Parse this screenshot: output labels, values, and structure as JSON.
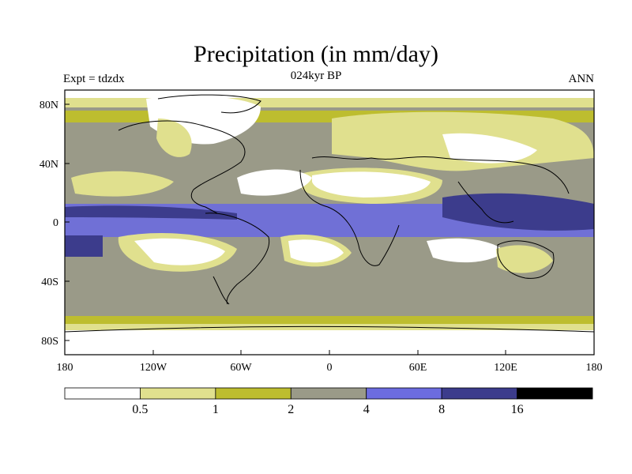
{
  "title": "Precipitation (in mm/day)",
  "experiment_label": "Expt = tdzdx",
  "period_label": "024kyr BP",
  "season_label": "ANN",
  "lat_ticks": [
    "80N",
    "40N",
    "0",
    "40S",
    "80S"
  ],
  "lon_ticks": [
    "180",
    "120W",
    "60W",
    "0",
    "60E",
    "120E",
    "180"
  ],
  "colorbar": {
    "boundaries": [
      "0.5",
      "1",
      "2",
      "4",
      "8",
      "16"
    ],
    "colors": [
      "#ffffff",
      "#e0e08e",
      "#bdbd2f",
      "#9a9a88",
      "#6c6cdf",
      "#3c3c8c",
      "#000000"
    ]
  }
}
